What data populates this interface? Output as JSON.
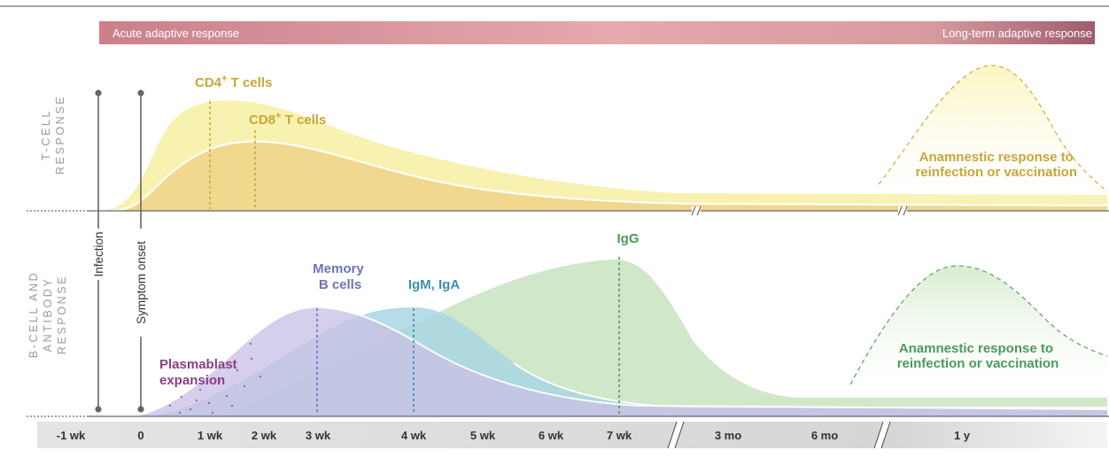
{
  "header": {
    "acute": "Acute adaptive response",
    "longterm": "Long-term adaptive response"
  },
  "rows": {
    "tcell": [
      "T-CELL",
      "RESPONSE"
    ],
    "bcell": [
      "B-CELL AND",
      "ANTIBODY",
      "RESPONSE"
    ]
  },
  "markers": {
    "infection": "Infection",
    "symptom": "Symptom onset"
  },
  "labels": {
    "cd4": "CD4",
    "cd8": "CD8",
    "plus": "+",
    "tcells": " T cells",
    "memory": [
      "Memory",
      "B cells"
    ],
    "igm": "IgM, IgA",
    "igg": "IgG",
    "plasmablast": [
      "Plasmablast",
      "expansion"
    ],
    "anamnestic_t": [
      "Anamnestic response to",
      "reinfection or vaccination"
    ],
    "anamnestic_b": [
      "Anamnestic response to",
      "reinfection or vaccination"
    ]
  },
  "axis": {
    "ticks": [
      "-1 wk",
      "0",
      "1 wk",
      "2 wk",
      "3 wk",
      "4 wk",
      "5 wk",
      "6 wk",
      "7 wk",
      "3 mo",
      "6 mo",
      "1 y"
    ]
  },
  "colors": {
    "cd4": "#f8f2b0",
    "cd8": "#f1d88e",
    "tlabel": "#c8a53a",
    "memory": "#c9c2e6",
    "memlabel": "#6e72b8",
    "iga": "#a9d6e3",
    "igalabel": "#3b8fb0",
    "igg": "#cfe6c6",
    "igglabel": "#4a9a5a",
    "plasmablast": "#8a3e86",
    "banner_left": "#b9546a",
    "banner_right": "#a06473"
  }
}
